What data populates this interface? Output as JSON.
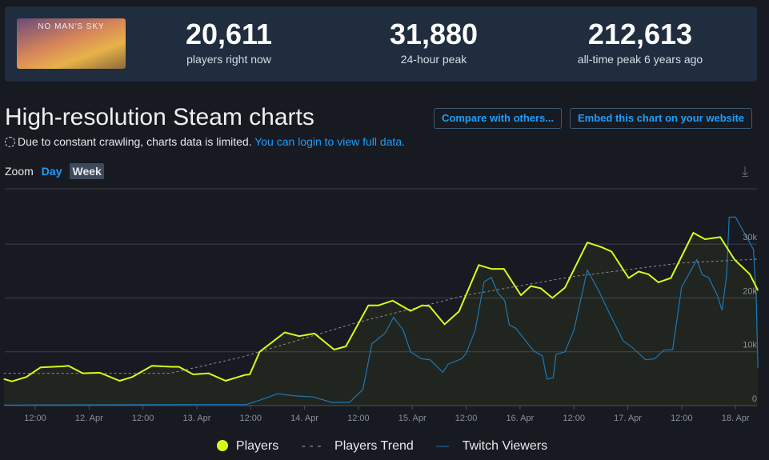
{
  "game": {
    "logo_text": "NO MAN'S SKY"
  },
  "stats": [
    {
      "value": "20,611",
      "label": "players right now"
    },
    {
      "value": "31,880",
      "label": "24-hour peak"
    },
    {
      "value": "212,613",
      "label": "all-time peak 6 years ago"
    }
  ],
  "title": "High-resolution Steam charts",
  "notice": {
    "text": "Due to constant crawling, charts data is limited.",
    "link": "You can login to view full data."
  },
  "buttons": {
    "compare": "Compare with others...",
    "embed": "Embed this chart on your website"
  },
  "zoom": {
    "label": "Zoom",
    "day": "Day",
    "week": "Week"
  },
  "colors": {
    "players": "#d4ff1a",
    "trend": "#8a8f96",
    "twitch": "#1f77b4"
  },
  "chart_data": {
    "type": "line",
    "x_unit": "hours since 11 Apr 00:00",
    "xlim": [
      5,
      173
    ],
    "ylim": [
      0,
      38000
    ],
    "x_ticks": [
      {
        "h": 12,
        "label": "12:00"
      },
      {
        "h": 24,
        "label": "12. Apr"
      },
      {
        "h": 36,
        "label": "12:00"
      },
      {
        "h": 48,
        "label": "13. Apr"
      },
      {
        "h": 60,
        "label": "12:00"
      },
      {
        "h": 72,
        "label": "14. Apr"
      },
      {
        "h": 84,
        "label": "12:00"
      },
      {
        "h": 96,
        "label": "15. Apr"
      },
      {
        "h": 108,
        "label": "12:00"
      },
      {
        "h": 120,
        "label": "16. Apr"
      },
      {
        "h": 132,
        "label": "12:00"
      },
      {
        "h": 144,
        "label": "17. Apr"
      },
      {
        "h": 156,
        "label": "12:00"
      },
      {
        "h": 168,
        "label": "18. Apr"
      }
    ],
    "y_ticks": [
      {
        "v": 0,
        "label": "0"
      },
      {
        "v": 10000,
        "label": "10k"
      },
      {
        "v": 20000,
        "label": "20k"
      },
      {
        "v": 30000,
        "label": "30k"
      }
    ],
    "series": [
      {
        "name": "Players",
        "values_k": [
          [
            5,
            4.95
          ],
          [
            6.8,
            4.5
          ],
          [
            10,
            5.3
          ],
          [
            13.2,
            7.1
          ],
          [
            18.2,
            7.3
          ],
          [
            19.4,
            7.4
          ],
          [
            22.6,
            6.0
          ],
          [
            26.4,
            6.1
          ],
          [
            30.8,
            4.6
          ],
          [
            33.6,
            5.3
          ],
          [
            38,
            7.4
          ],
          [
            42.4,
            7.2
          ],
          [
            44,
            7.2
          ],
          [
            47.2,
            5.8
          ],
          [
            50.6,
            6.0
          ],
          [
            54.4,
            4.6
          ],
          [
            58.8,
            5.7
          ],
          [
            59.8,
            5.8
          ],
          [
            62,
            10.0
          ],
          [
            67.6,
            13.6
          ],
          [
            70.8,
            12.9
          ],
          [
            74.2,
            13.4
          ],
          [
            78.6,
            10.4
          ],
          [
            81.2,
            11.0
          ],
          [
            86.2,
            18.6
          ],
          [
            88.4,
            18.6
          ],
          [
            91.6,
            19.5
          ],
          [
            95.6,
            17.6
          ],
          [
            98.2,
            18.6
          ],
          [
            99.8,
            18.5
          ],
          [
            103.2,
            15.1
          ],
          [
            106.4,
            17.5
          ],
          [
            110.8,
            26.1
          ],
          [
            113.6,
            25.4
          ],
          [
            116.4,
            25.4
          ],
          [
            120.2,
            20.5
          ],
          [
            122.4,
            22.2
          ],
          [
            124.6,
            21.8
          ],
          [
            127.2,
            20.0
          ],
          [
            130,
            21.9
          ],
          [
            135,
            30.3
          ],
          [
            138.2,
            29.4
          ],
          [
            140.4,
            28.6
          ],
          [
            144.2,
            23.7
          ],
          [
            146.4,
            24.9
          ],
          [
            148.6,
            24.4
          ],
          [
            150.8,
            22.9
          ],
          [
            153.6,
            23.7
          ],
          [
            158.6,
            32.1
          ],
          [
            161.2,
            30.9
          ],
          [
            164.6,
            31.3
          ],
          [
            167.8,
            27.1
          ],
          [
            171.2,
            24.4
          ],
          [
            173,
            21.4
          ]
        ]
      },
      {
        "name": "Players Trend",
        "values_k": [
          [
            5,
            6
          ],
          [
            42,
            6
          ],
          [
            58,
            9
          ],
          [
            84,
            15.5
          ],
          [
            108,
            20.5
          ],
          [
            132,
            24
          ],
          [
            156,
            26.5
          ],
          [
            173,
            27.2
          ]
        ]
      },
      {
        "name": "Twitch Viewers",
        "values_k": [
          [
            5,
            0.1
          ],
          [
            48,
            0.2
          ],
          [
            59,
            0.2
          ],
          [
            62,
            1.0
          ],
          [
            66,
            2.2
          ],
          [
            70,
            1.8
          ],
          [
            74,
            1.6
          ],
          [
            78,
            0.6
          ],
          [
            82,
            0.6
          ],
          [
            85,
            3.0
          ],
          [
            87,
            11.5
          ],
          [
            90,
            13.5
          ],
          [
            91.8,
            16.4
          ],
          [
            94,
            14.0
          ],
          [
            95.6,
            10
          ],
          [
            98,
            8.7
          ],
          [
            100,
            8.5
          ],
          [
            102.8,
            6.2
          ],
          [
            104,
            7.7
          ],
          [
            107,
            8.7
          ],
          [
            108,
            9.7
          ],
          [
            110,
            14
          ],
          [
            112,
            23
          ],
          [
            113.6,
            23.8
          ],
          [
            115,
            21
          ],
          [
            116.6,
            19.5
          ],
          [
            117.6,
            15
          ],
          [
            119,
            14.4
          ],
          [
            123,
            10.2
          ],
          [
            125,
            9.2
          ],
          [
            126,
            4.9
          ],
          [
            127.4,
            5.2
          ],
          [
            128,
            9.5
          ],
          [
            130,
            10
          ],
          [
            132,
            14
          ],
          [
            135,
            25.2
          ],
          [
            137.6,
            21.2
          ],
          [
            140,
            17
          ],
          [
            143,
            12
          ],
          [
            145,
            10.8
          ],
          [
            148,
            8.5
          ],
          [
            150,
            8.7
          ],
          [
            152,
            10.3
          ],
          [
            154,
            10.4
          ],
          [
            156,
            22
          ],
          [
            159.4,
            27.1
          ],
          [
            160.6,
            24.3
          ],
          [
            162,
            23.8
          ],
          [
            164,
            20.4
          ],
          [
            165,
            17.7
          ],
          [
            166,
            24
          ],
          [
            166.6,
            35
          ],
          [
            168,
            35
          ],
          [
            170,
            32
          ],
          [
            172,
            29
          ],
          [
            172.6,
            20
          ],
          [
            173,
            7
          ]
        ]
      }
    ],
    "legend": {
      "placement": "bottom",
      "items": [
        "Players",
        "Players Trend",
        "Twitch Viewers"
      ]
    }
  }
}
